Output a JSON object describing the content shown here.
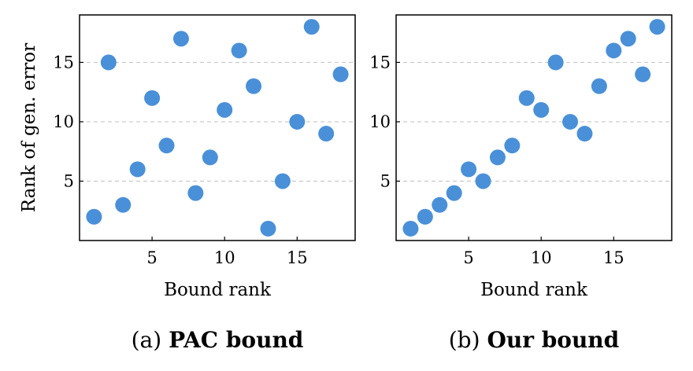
{
  "style": {
    "point_color": "#4a90d9",
    "grid_color": "#c8c8c8",
    "frame_color": "#000000"
  },
  "chart_data": [
    {
      "type": "scatter",
      "caption_prefix": "(a)",
      "caption_title": "PAC bound",
      "xlabel": "Bound rank",
      "ylabel": "Rank of gen. error",
      "xlim": [
        0,
        19
      ],
      "ylim": [
        0,
        19
      ],
      "xticks": [
        5,
        10,
        15
      ],
      "yticks": [
        5,
        10,
        15
      ],
      "grid": "horizontal-dashed",
      "points": [
        {
          "x": 1,
          "y": 2
        },
        {
          "x": 2,
          "y": 15
        },
        {
          "x": 3,
          "y": 3
        },
        {
          "x": 4,
          "y": 6
        },
        {
          "x": 5,
          "y": 12
        },
        {
          "x": 6,
          "y": 8
        },
        {
          "x": 7,
          "y": 17
        },
        {
          "x": 8,
          "y": 4
        },
        {
          "x": 9,
          "y": 7
        },
        {
          "x": 10,
          "y": 11
        },
        {
          "x": 11,
          "y": 16
        },
        {
          "x": 12,
          "y": 13
        },
        {
          "x": 13,
          "y": 1
        },
        {
          "x": 14,
          "y": 5
        },
        {
          "x": 15,
          "y": 10
        },
        {
          "x": 16,
          "y": 18
        },
        {
          "x": 17,
          "y": 9
        },
        {
          "x": 18,
          "y": 14
        }
      ]
    },
    {
      "type": "scatter",
      "caption_prefix": "(b)",
      "caption_title": "Our bound",
      "xlabel": "Bound rank",
      "ylabel": "",
      "xlim": [
        0,
        19
      ],
      "ylim": [
        0,
        19
      ],
      "xticks": [
        5,
        10,
        15
      ],
      "yticks": [
        5,
        10,
        15
      ],
      "grid": "horizontal-dashed",
      "points": [
        {
          "x": 1,
          "y": 1
        },
        {
          "x": 2,
          "y": 2
        },
        {
          "x": 3,
          "y": 3
        },
        {
          "x": 4,
          "y": 4
        },
        {
          "x": 5,
          "y": 6
        },
        {
          "x": 6,
          "y": 5
        },
        {
          "x": 7,
          "y": 7
        },
        {
          "x": 8,
          "y": 8
        },
        {
          "x": 9,
          "y": 12
        },
        {
          "x": 10,
          "y": 11
        },
        {
          "x": 11,
          "y": 15
        },
        {
          "x": 12,
          "y": 10
        },
        {
          "x": 13,
          "y": 9
        },
        {
          "x": 14,
          "y": 13
        },
        {
          "x": 15,
          "y": 16
        },
        {
          "x": 16,
          "y": 17
        },
        {
          "x": 17,
          "y": 14
        },
        {
          "x": 18,
          "y": 18
        }
      ]
    }
  ]
}
